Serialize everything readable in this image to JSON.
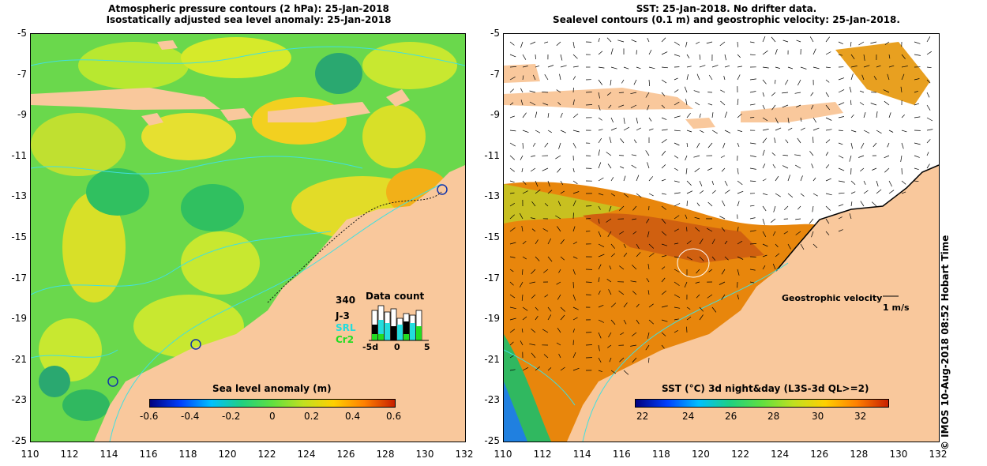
{
  "left_panel": {
    "title_line1": "Atmospheric pressure contours (2 hPa): 25-Jan-2018",
    "title_line2": "Isostatically adjusted sea level anomaly: 25-Jan-2018",
    "colorbar": {
      "label": "Sea level anomaly (m)",
      "ticks": [
        "-0.6",
        "-0.4",
        "-0.2",
        "0",
        "0.2",
        "0.4",
        "0.6"
      ]
    },
    "data_count": {
      "title": "Data count",
      "max_value": "340",
      "series": [
        {
          "name": "J-3",
          "color": "#000000"
        },
        {
          "name": "SRL",
          "color": "#22dddd"
        },
        {
          "name": "Cr2",
          "color": "#22dd22"
        }
      ],
      "x_ticks": [
        "-5d",
        "0",
        "5"
      ]
    }
  },
  "right_panel": {
    "title_line1": "SST: 25-Jan-2018. No drifter data.",
    "title_line2": "Sealevel contours (0.1 m) and geostrophic velocity: 25-Jan-2018.",
    "geostrophic_label": "Geostrophic velocity",
    "velocity_scale": "1 m/s",
    "colorbar": {
      "label": "SST (°C) 3d night&day (L3S-3d QL>=2)",
      "ticks": [
        "22",
        "24",
        "26",
        "28",
        "30",
        "32"
      ]
    }
  },
  "axes": {
    "x_ticks": [
      "110",
      "112",
      "114",
      "116",
      "118",
      "120",
      "122",
      "124",
      "126",
      "128",
      "130",
      "132"
    ],
    "y_ticks": [
      "-5",
      "-7",
      "-9",
      "-11",
      "-13",
      "-15",
      "-17",
      "-19",
      "-21",
      "-23",
      "-25"
    ]
  },
  "credit": "© IMOS 10-Aug-2018 08:52 Hobart Time",
  "colors": {
    "land": "#f9c89c",
    "sea_level_base": "#6ad84c",
    "sst_warm": "#e8860c",
    "contour": "#40e0e0"
  }
}
